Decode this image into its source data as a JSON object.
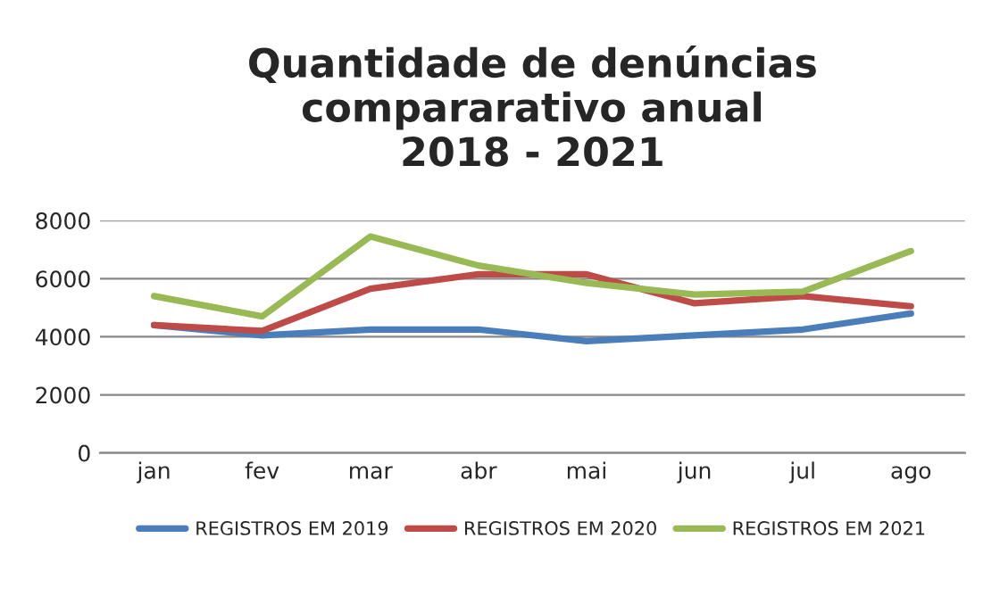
{
  "chart_data": {
    "type": "line",
    "title": "Quantidade de denúncias\ncompararativo anual\n2018 - 2021",
    "categories": [
      "jan",
      "fev",
      "mar",
      "abr",
      "mai",
      "jun",
      "jul",
      "ago"
    ],
    "series": [
      {
        "name": "REGISTROS EM 2019",
        "color": "#4a7ebb",
        "values": [
          4400,
          4050,
          4250,
          4250,
          3850,
          4050,
          4250,
          4800
        ]
      },
      {
        "name": "REGISTROS EM 2020",
        "color": "#be4b48",
        "values": [
          4400,
          4200,
          5650,
          6150,
          6150,
          5150,
          5400,
          5050
        ]
      },
      {
        "name": "REGISTROS EM 2021",
        "color": "#98b954",
        "values": [
          5400,
          4700,
          7450,
          6450,
          5850,
          5450,
          5550,
          6950
        ]
      }
    ],
    "ylim": [
      0,
      8000
    ],
    "yticks": [
      0,
      2000,
      4000,
      6000,
      8000
    ],
    "grid": "y",
    "legend": "bottom",
    "marker": "none",
    "line_style": "solid"
  }
}
